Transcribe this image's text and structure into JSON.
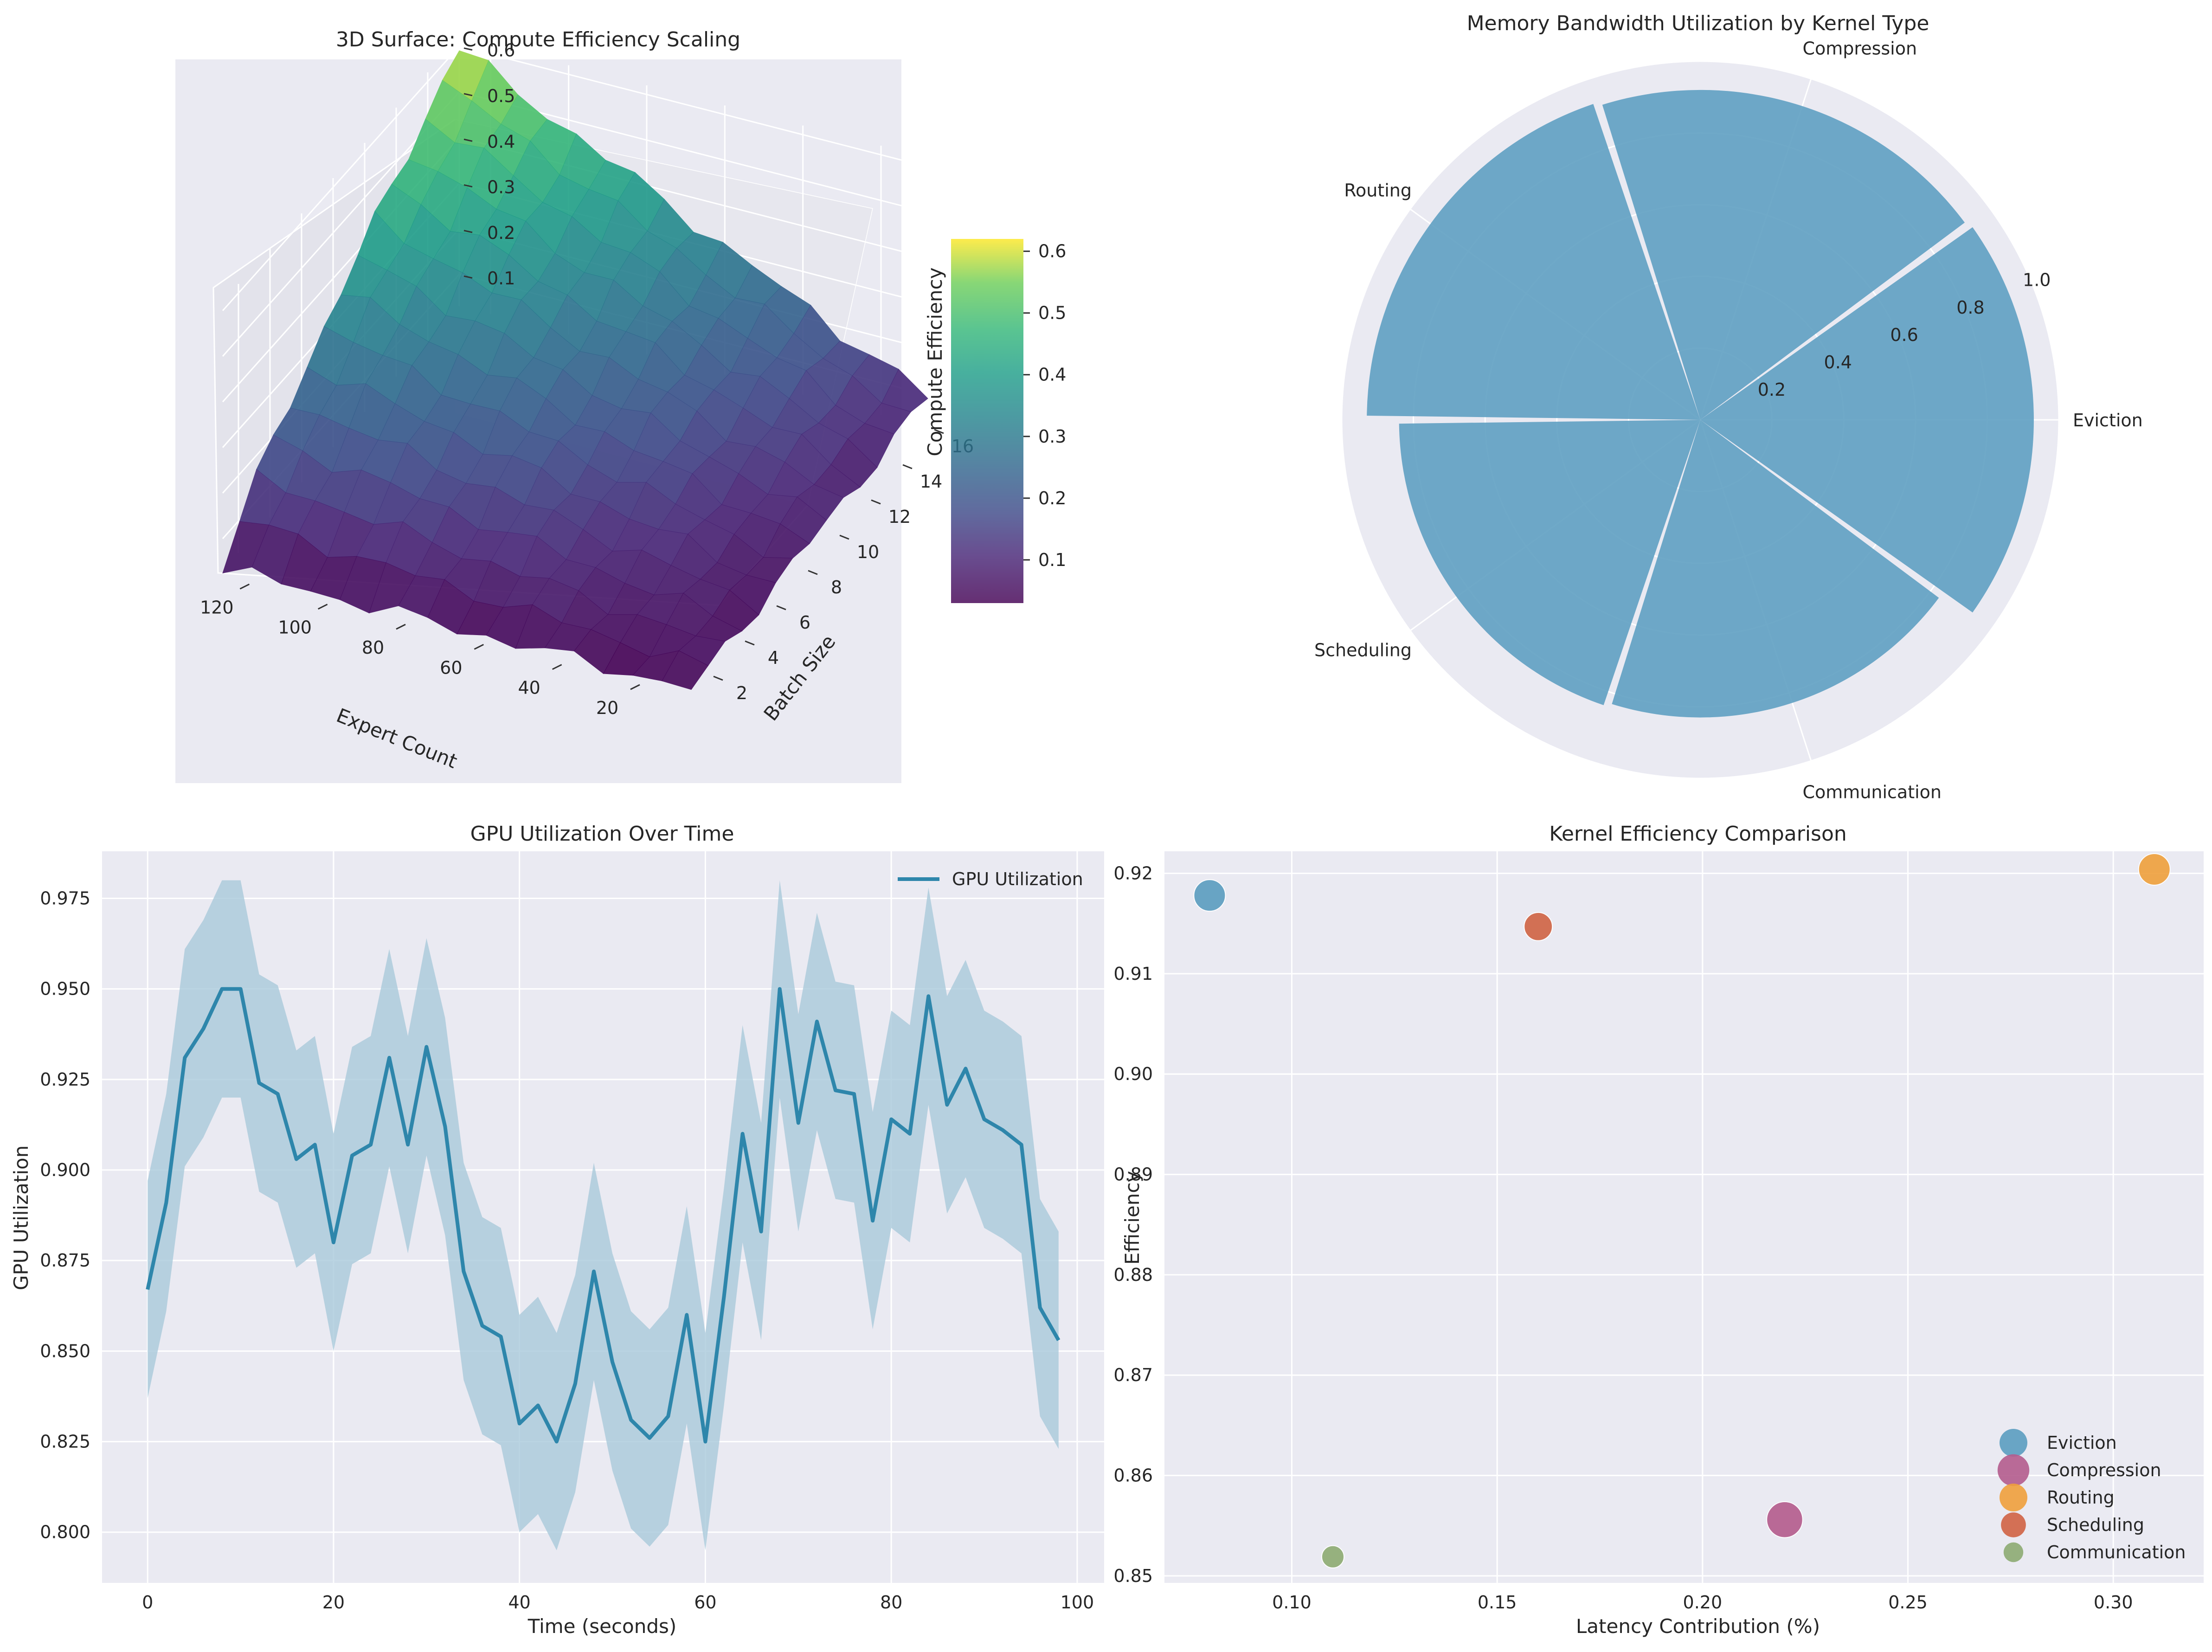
{
  "chart_data": [
    {
      "type": "surface3d",
      "title": "3D Surface: Compute Efficiency Scaling",
      "xlabel": "Expert Count",
      "ylabel": "Batch Size",
      "zlabel": "Compute Efficiency",
      "x_ticks": [
        20,
        40,
        60,
        80,
        100,
        120
      ],
      "y_ticks": [
        2,
        4,
        6,
        8,
        10,
        12,
        14,
        16
      ],
      "z_ticks": [
        0.1,
        0.2,
        0.3,
        0.4,
        0.5,
        0.6
      ],
      "xlim": [
        8,
        128
      ],
      "ylim": [
        1,
        16
      ],
      "zlim": [
        0.03,
        0.62
      ],
      "colormap": "viridis",
      "colorbar_label": "Compute Efficiency",
      "colorbar_ticks": [
        0.1,
        0.2,
        0.3,
        0.4,
        0.5,
        0.6
      ],
      "colorbar_range": [
        0.03,
        0.62
      ]
    },
    {
      "type": "polar_bar",
      "title": "Memory Bandwidth Utilization by Kernel Type",
      "categories": [
        "Eviction",
        "Compression",
        "Routing",
        "Scheduling",
        "Communication"
      ],
      "angles_deg": [
        0,
        72,
        144,
        216,
        288
      ],
      "values": [
        0.93,
        0.92,
        0.93,
        0.84,
        0.83
      ],
      "r_ticks": [
        "0.2",
        "0.4",
        "0.6",
        "0.8",
        "1.0"
      ],
      "rlim": [
        0,
        1.0
      ],
      "color": "#5b9dc0"
    },
    {
      "type": "line",
      "title": "GPU Utilization Over Time",
      "xlabel": "Time (seconds)",
      "ylabel": "GPU Utilization",
      "legend": "GPU Utilization",
      "x": [
        0,
        2,
        4,
        6,
        8,
        10,
        12,
        14,
        16,
        18,
        20,
        22,
        24,
        26,
        28,
        30,
        32,
        34,
        36,
        38,
        40,
        42,
        44,
        46,
        48,
        50,
        52,
        54,
        56,
        58,
        60,
        62,
        64,
        66,
        68,
        70,
        72,
        74,
        76,
        78,
        80,
        82,
        84,
        86,
        88,
        90,
        92,
        94,
        96,
        98
      ],
      "y": [
        0.867,
        0.891,
        0.931,
        0.939,
        0.95,
        0.95,
        0.924,
        0.921,
        0.903,
        0.907,
        0.88,
        0.904,
        0.907,
        0.931,
        0.907,
        0.934,
        0.912,
        0.872,
        0.857,
        0.854,
        0.83,
        0.835,
        0.825,
        0.841,
        0.872,
        0.847,
        0.831,
        0.826,
        0.832,
        0.86,
        0.825,
        0.865,
        0.91,
        0.883,
        0.95,
        0.913,
        0.941,
        0.922,
        0.921,
        0.886,
        0.914,
        0.91,
        0.948,
        0.918,
        0.928,
        0.914,
        0.911,
        0.907,
        0.862,
        0.853
      ],
      "band": 0.03,
      "band_clip_max": 0.98,
      "x_ticks": [
        0,
        20,
        40,
        60,
        80,
        100
      ],
      "y_ticks": [
        "0.800",
        "0.825",
        "0.850",
        "0.875",
        "0.900",
        "0.925",
        "0.950",
        "0.975"
      ],
      "xlim": [
        -4.9,
        102.9
      ],
      "ylim": [
        0.786,
        0.988
      ],
      "line_color": "#2e86ab",
      "band_color": "#a6c8da"
    },
    {
      "type": "scatter",
      "title": "Kernel Efficiency Comparison",
      "xlabel": "Latency Contribution (%)",
      "ylabel": "Efficiency",
      "series": [
        {
          "name": "Eviction",
          "x": 0.08,
          "y": 0.9178,
          "size": 1.0,
          "color": "#5b9dc0"
        },
        {
          "name": "Compression",
          "x": 0.22,
          "y": 0.8556,
          "size": 1.3,
          "color": "#b45c8d"
        },
        {
          "name": "Routing",
          "x": 0.31,
          "y": 0.9204,
          "size": 1.0,
          "color": "#efa03c"
        },
        {
          "name": "Scheduling",
          "x": 0.16,
          "y": 0.9147,
          "size": 0.8,
          "color": "#d06344"
        },
        {
          "name": "Communication",
          "x": 0.11,
          "y": 0.8519,
          "size": 0.5,
          "color": "#8dab72"
        }
      ],
      "x_ticks": [
        "0.10",
        "0.15",
        "0.20",
        "0.25",
        "0.30"
      ],
      "y_ticks": [
        "0.85",
        "0.86",
        "0.87",
        "0.88",
        "0.89",
        "0.90",
        "0.91",
        "0.92"
      ],
      "xlim": [
        0.069,
        0.322
      ],
      "ylim": [
        0.8493,
        0.9222
      ],
      "legend_position": "lower-right"
    }
  ]
}
